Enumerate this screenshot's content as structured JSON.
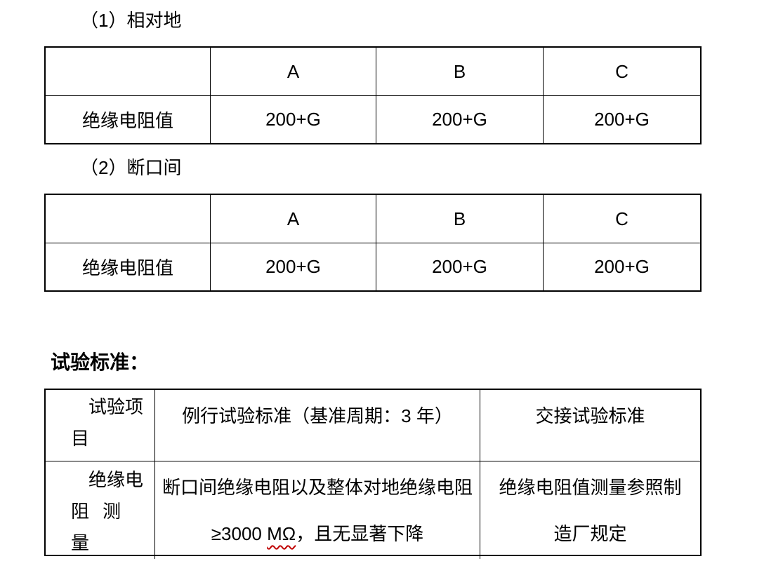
{
  "headings": {
    "section1": "（1）相对地",
    "section2": "（2）断口间",
    "standards": "试验标准："
  },
  "phase_to_ground_table": {
    "col_headers": [
      "A",
      "B",
      "C"
    ],
    "row_label": "绝缘电阻值",
    "values": [
      "200+G",
      "200+G",
      "200+G"
    ]
  },
  "break_gap_table": {
    "col_headers": [
      "A",
      "B",
      "C"
    ],
    "row_label": "绝缘电阻值",
    "values": [
      "200+G",
      "200+G",
      "200+G"
    ]
  },
  "standards_table": {
    "header": {
      "item_col_line1": "试验项",
      "item_col_line2": "目",
      "routine_col": "例行试验标准（基准周期：3 年）",
      "handover_col": "交接试验标准"
    },
    "row": {
      "item_line1": "绝缘电",
      "item_line2": "阻测量",
      "routine_line1": "断口间绝缘电阻以及整体对地绝缘电阻",
      "routine_line2_pre": "≥3000 ",
      "routine_line2_wavy": "MΩ",
      "routine_line2_post": "，且无显著下降",
      "handover_line1": "绝缘电阻值测量参照制",
      "handover_line2": "造厂规定"
    }
  },
  "colors": {
    "text": "#000000",
    "table_border": "#000000",
    "spellcheck_underline": "#c00000",
    "background": "#ffffff"
  }
}
